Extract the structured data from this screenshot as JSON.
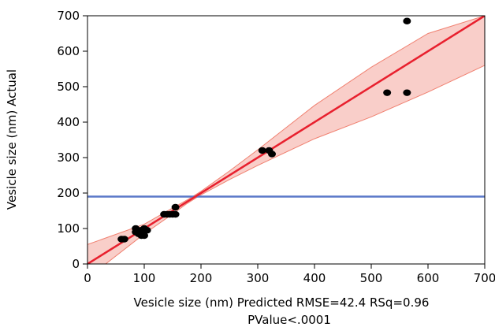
{
  "chart_data": {
    "type": "scatter",
    "xlabel": "Vesicle size (nm) Predicted RMSE=42.4 RSq=0.96",
    "xlabel_line2": "PValue<.0001",
    "ylabel": "Vesicle size (nm) Actual",
    "xlim": [
      0,
      700
    ],
    "ylim": [
      0,
      700
    ],
    "x_ticks": [
      0,
      100,
      200,
      300,
      400,
      500,
      600,
      700
    ],
    "y_ticks": [
      0,
      100,
      200,
      300,
      400,
      500,
      600,
      700
    ],
    "grid": false,
    "points": [
      {
        "x": 60,
        "y": 70
      },
      {
        "x": 65,
        "y": 70
      },
      {
        "x": 85,
        "y": 90
      },
      {
        "x": 85,
        "y": 100
      },
      {
        "x": 90,
        "y": 85
      },
      {
        "x": 95,
        "y": 80
      },
      {
        "x": 95,
        "y": 95
      },
      {
        "x": 100,
        "y": 80
      },
      {
        "x": 100,
        "y": 100
      },
      {
        "x": 105,
        "y": 95
      },
      {
        "x": 135,
        "y": 140
      },
      {
        "x": 140,
        "y": 140
      },
      {
        "x": 145,
        "y": 140
      },
      {
        "x": 150,
        "y": 140
      },
      {
        "x": 155,
        "y": 140
      },
      {
        "x": 155,
        "y": 160
      },
      {
        "x": 308,
        "y": 320
      },
      {
        "x": 320,
        "y": 320
      },
      {
        "x": 325,
        "y": 310
      },
      {
        "x": 528,
        "y": 483
      },
      {
        "x": 563,
        "y": 483
      },
      {
        "x": 563,
        "y": 685
      }
    ],
    "fit_line": {
      "x": [
        0,
        700
      ],
      "y": [
        0,
        700
      ]
    },
    "confidence_band": {
      "x": [
        0,
        100,
        150,
        175,
        200,
        250,
        300,
        400,
        500,
        600,
        700
      ],
      "lower": [
        -40,
        85,
        141,
        170,
        195,
        238,
        278,
        353,
        415,
        485,
        560
      ],
      "upper": [
        55,
        112,
        158,
        180,
        205,
        262,
        322,
        447,
        555,
        650,
        700
      ]
    },
    "mean_line_y": 190,
    "colors": {
      "points": "#000000",
      "fit_line": "#e8202e",
      "band_fill": "#f8c9c3",
      "band_edge": "#f08070",
      "mean_line": "#5a78c8"
    }
  }
}
